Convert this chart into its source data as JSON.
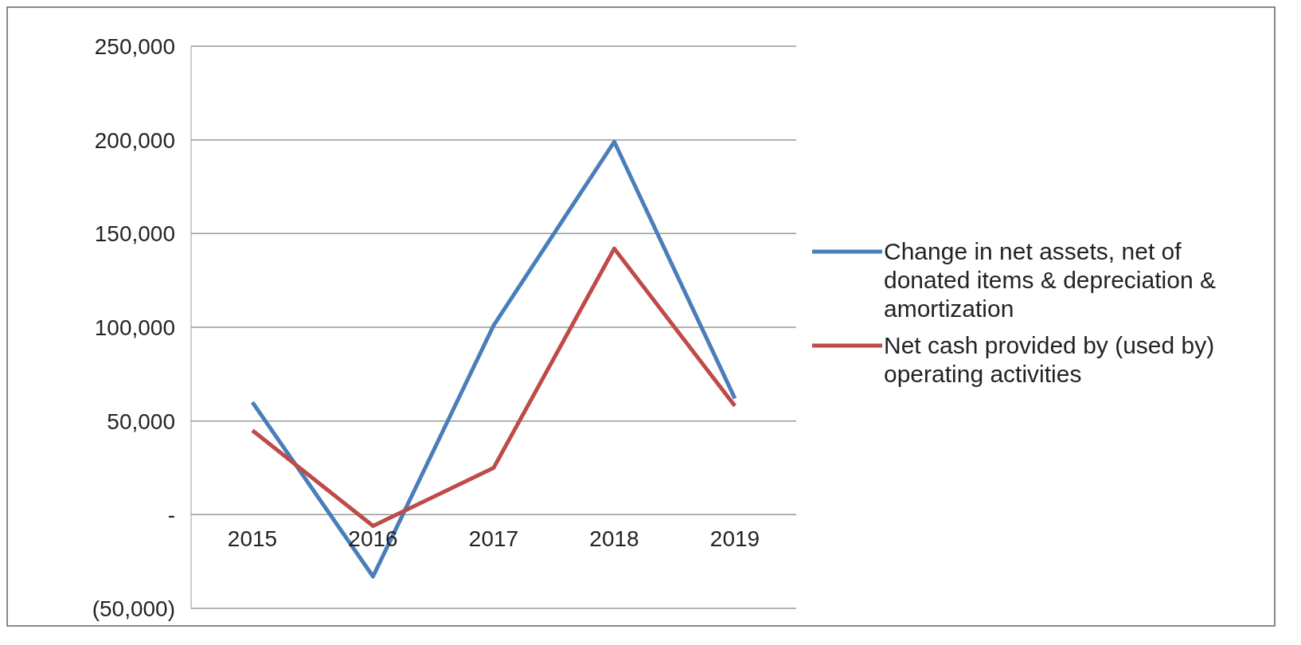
{
  "chart_data": {
    "type": "line",
    "categories": [
      "2015",
      "2016",
      "2017",
      "2018",
      "2019"
    ],
    "series": [
      {
        "name": "Change in net assets, net of donated items & depreciation & amortization",
        "color": "#4a7ebb",
        "values": [
          60000,
          -33000,
          101000,
          199000,
          62000
        ]
      },
      {
        "name": "Net cash provided by (used by) operating activities",
        "color": "#be4b48",
        "values": [
          45000,
          -6000,
          25000,
          142000,
          58000
        ]
      }
    ],
    "ylim": [
      -50000,
      250000
    ],
    "yticks": [
      {
        "value": -50000,
        "label": "(50,000)"
      },
      {
        "value": 0,
        "label": "-"
      },
      {
        "value": 50000,
        "label": "50,000"
      },
      {
        "value": 100000,
        "label": "100,000"
      },
      {
        "value": 150000,
        "label": "150,000"
      },
      {
        "value": 200000,
        "label": "200,000"
      },
      {
        "value": 250000,
        "label": "250,000"
      }
    ],
    "grid": "y",
    "legend": "right",
    "marker": "none",
    "line_style": "solid"
  }
}
